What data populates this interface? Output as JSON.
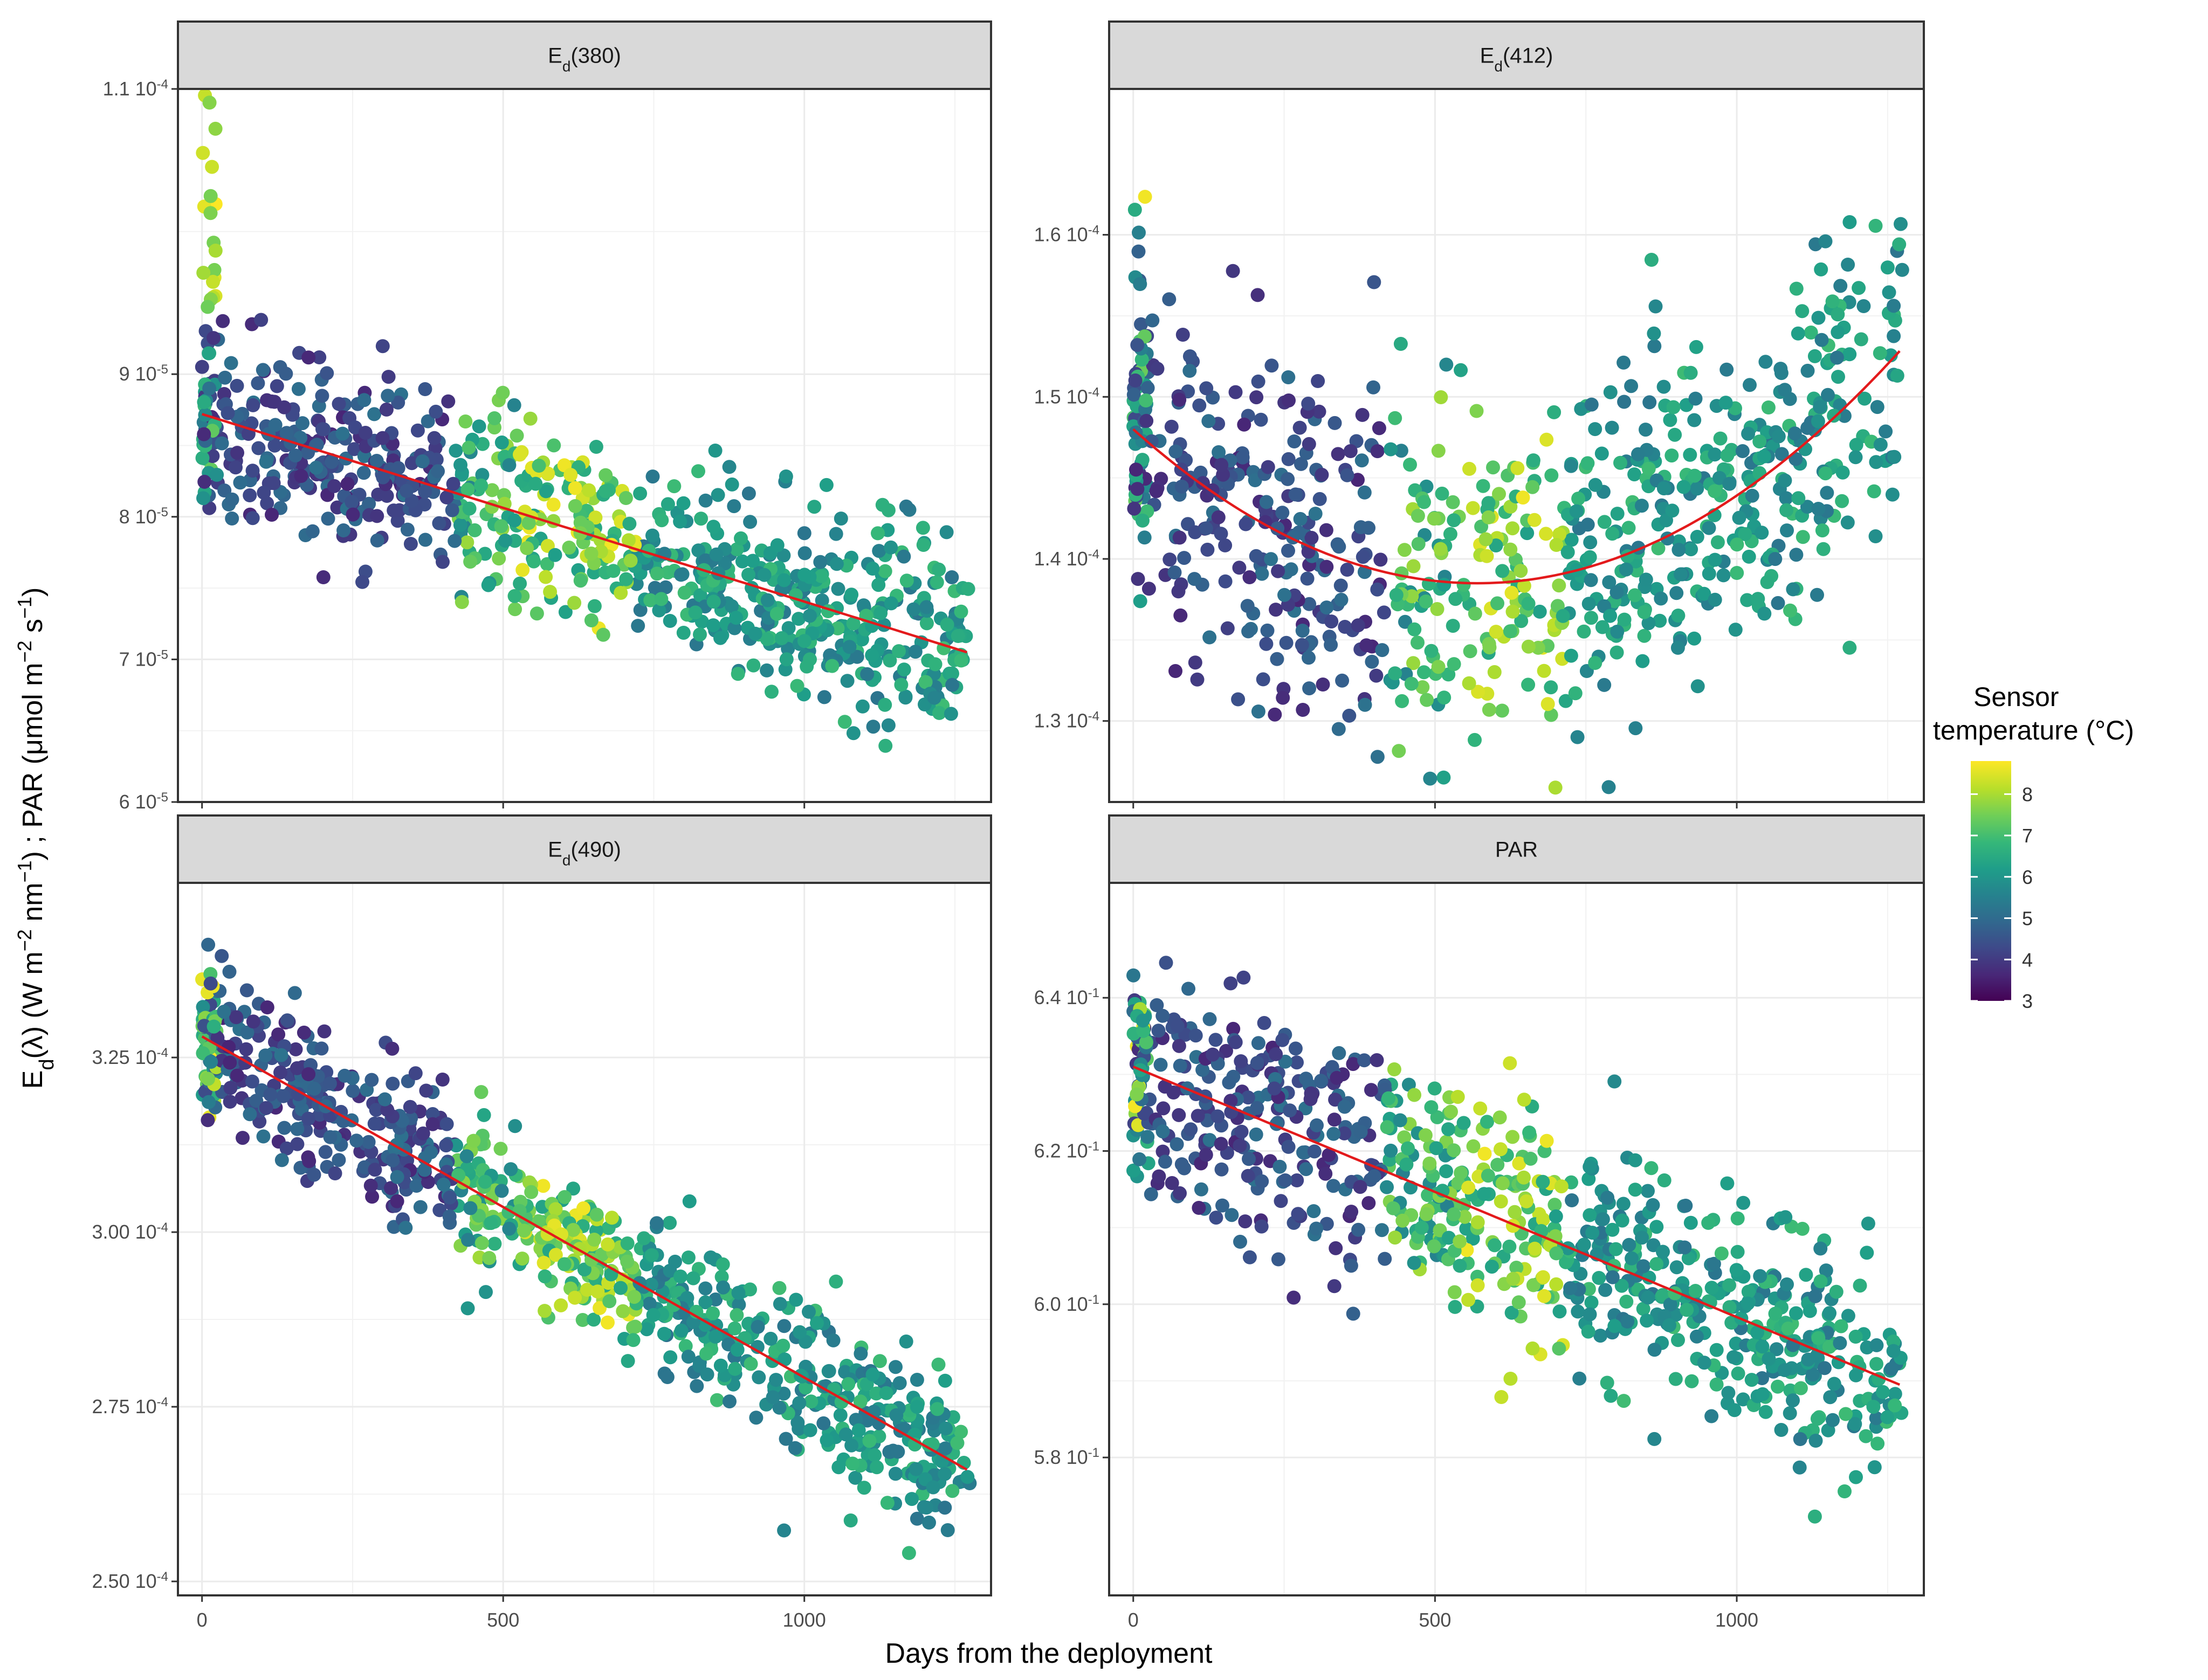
{
  "chart_data": [
    {
      "type": "scatter",
      "panel": "Ed(380)",
      "strip_main": "E",
      "strip_sub": "d",
      "strip_rest": "(380)",
      "xlim": [
        -40,
        1310
      ],
      "ylim": [
        6e-05,
        0.00011
      ],
      "yticks": [
        {
          "value": 0.00011,
          "mantissa": "1.1",
          "exp": "-4"
        },
        {
          "value": 9e-05,
          "mantissa": "9",
          "exp": "-5"
        },
        {
          "value": 8e-05,
          "mantissa": "8",
          "exp": "-5"
        },
        {
          "value": 7e-05,
          "mantissa": "7",
          "exp": "-5"
        },
        {
          "value": 6e-05,
          "mantissa": "6",
          "exp": "-5"
        }
      ],
      "trend": {
        "kind": "linear",
        "x": [
          0,
          1270
        ],
        "y": [
          8.72e-05,
          7.05e-05
        ]
      },
      "series_model": {
        "kind": "linear",
        "start": 8.72e-05,
        "end": 7.05e-05,
        "noise": 3.2e-06,
        "n": 880
      }
    },
    {
      "type": "scatter",
      "panel": "Ed(412)",
      "strip_main": "E",
      "strip_sub": "d",
      "strip_rest": "(412)",
      "xlim": [
        -40,
        1310
      ],
      "ylim": [
        0.000125,
        0.000169
      ],
      "yticks": [
        {
          "value": 0.00016,
          "mantissa": "1.6",
          "exp": "-4"
        },
        {
          "value": 0.00015,
          "mantissa": "1.5",
          "exp": "-4"
        },
        {
          "value": 0.00014,
          "mantissa": "1.4",
          "exp": "-4"
        },
        {
          "value": 0.00013,
          "mantissa": "1.3",
          "exp": "-4"
        }
      ],
      "trend": {
        "kind": "quadratic",
        "x": [
          0,
          1270
        ],
        "vertex_x": 570,
        "vertex_y": 0.0001385,
        "start_y": 0.000148
      },
      "series_model": {
        "kind": "quadratic",
        "noise": 5.5e-06,
        "n": 880
      }
    },
    {
      "type": "scatter",
      "panel": "Ed(490)",
      "strip_main": "E",
      "strip_sub": "d",
      "strip_rest": "(490)",
      "xlim": [
        -40,
        1310
      ],
      "ylim": [
        0.000248,
        0.00035
      ],
      "yticks": [
        {
          "value": 0.000325,
          "mantissa": "3.25",
          "exp": "-4"
        },
        {
          "value": 0.0003,
          "mantissa": "3.00",
          "exp": "-4"
        },
        {
          "value": 0.000275,
          "mantissa": "2.75",
          "exp": "-4"
        },
        {
          "value": 0.00025,
          "mantissa": "2.50",
          "exp": "-4"
        }
      ],
      "trend": {
        "kind": "linear",
        "x": [
          0,
          1270
        ],
        "y": [
          0.000328,
          0.000266
        ]
      },
      "series_model": {
        "kind": "linear",
        "start": 0.000328,
        "end": 0.000266,
        "noise": 5.5e-06,
        "n": 880
      }
    },
    {
      "type": "scatter",
      "panel": "PAR",
      "strip_main": "PAR",
      "strip_sub": "",
      "strip_rest": "",
      "xlim": [
        -40,
        1310
      ],
      "ylim": [
        0.562,
        0.655
      ],
      "yticks": [
        {
          "value": 0.64,
          "mantissa": "6.4",
          "exp": "-1"
        },
        {
          "value": 0.62,
          "mantissa": "6.2",
          "exp": "-1"
        },
        {
          "value": 0.6,
          "mantissa": "6.0",
          "exp": "-1"
        },
        {
          "value": 0.58,
          "mantissa": "5.8",
          "exp": "-1"
        }
      ],
      "trend": {
        "kind": "linear",
        "x": [
          0,
          1270
        ],
        "y": [
          0.631,
          0.5895
        ]
      },
      "series_model": {
        "kind": "linear",
        "start": 0.631,
        "end": 0.5895,
        "noise": 0.0075,
        "n": 880
      }
    }
  ],
  "x_ticks": [
    0,
    500,
    1000
  ],
  "x_tick_labels": [
    "0",
    "500",
    "1000"
  ],
  "x_axis_title": "Days from the deployment",
  "y_axis_title": "Ed(λ) (W m-2 nm-1) ; PAR (μmol m-2 s-1)",
  "y_axis_title_parts": {
    "e": "E",
    "d": "d",
    "lam": "(λ) (W m",
    "m2": "−2",
    "nm": " nm",
    "m1": "−1",
    "par": ") ; PAR (μmol m",
    "m2b": "−2",
    "s": " s",
    "m1b": "−1",
    "close": ")"
  },
  "legend": {
    "title_line1": "Sensor",
    "title_line2": "temperature (°C)",
    "min": 3,
    "max": 8.8,
    "ticks": [
      "3",
      "4",
      "5",
      "6",
      "7",
      "8"
    ]
  },
  "colors": {
    "strip_fill": "#d9d9d9",
    "panel_border": "#333333",
    "grid": "#ebebeb",
    "trend": "#e31a1c",
    "viridis": [
      "#440154",
      "#482878",
      "#3e4989",
      "#31688e",
      "#26828e",
      "#1f9e89",
      "#35b779",
      "#6ece58",
      "#b5de2b",
      "#fde725"
    ]
  }
}
